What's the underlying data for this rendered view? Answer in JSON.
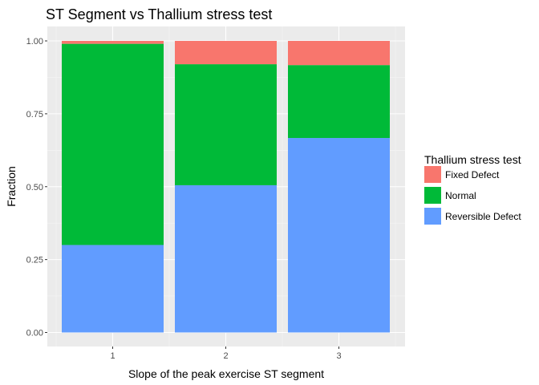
{
  "chart_data": {
    "type": "bar",
    "stacked": true,
    "title": "ST Segment vs Thallium stress test",
    "xlabel": "Slope of the peak exercise ST segment",
    "ylabel": "Fraction",
    "categories": [
      "1",
      "2",
      "3"
    ],
    "ylim": [
      0,
      1
    ],
    "yticks": [
      "0.00",
      "0.25",
      "0.50",
      "0.75",
      "1.00"
    ],
    "grid": true,
    "legend_position": "right",
    "legend_title": "Thallium stress test",
    "series": [
      {
        "name": "Reversible Defect",
        "color": "#619CFF",
        "values": [
          0.3,
          0.505,
          0.667
        ]
      },
      {
        "name": "Normal",
        "color": "#00BA38",
        "values": [
          0.69,
          0.415,
          0.25
        ]
      },
      {
        "name": "Fixed Defect",
        "color": "#F8766D",
        "values": [
          0.01,
          0.08,
          0.083
        ]
      }
    ],
    "legend_order": [
      "Fixed Defect",
      "Normal",
      "Reversible Defect"
    ]
  },
  "colors": {
    "panel_background": "#EBEBEB",
    "grid_major": "#FFFFFF",
    "grid_minor": "#F5F5F5"
  }
}
